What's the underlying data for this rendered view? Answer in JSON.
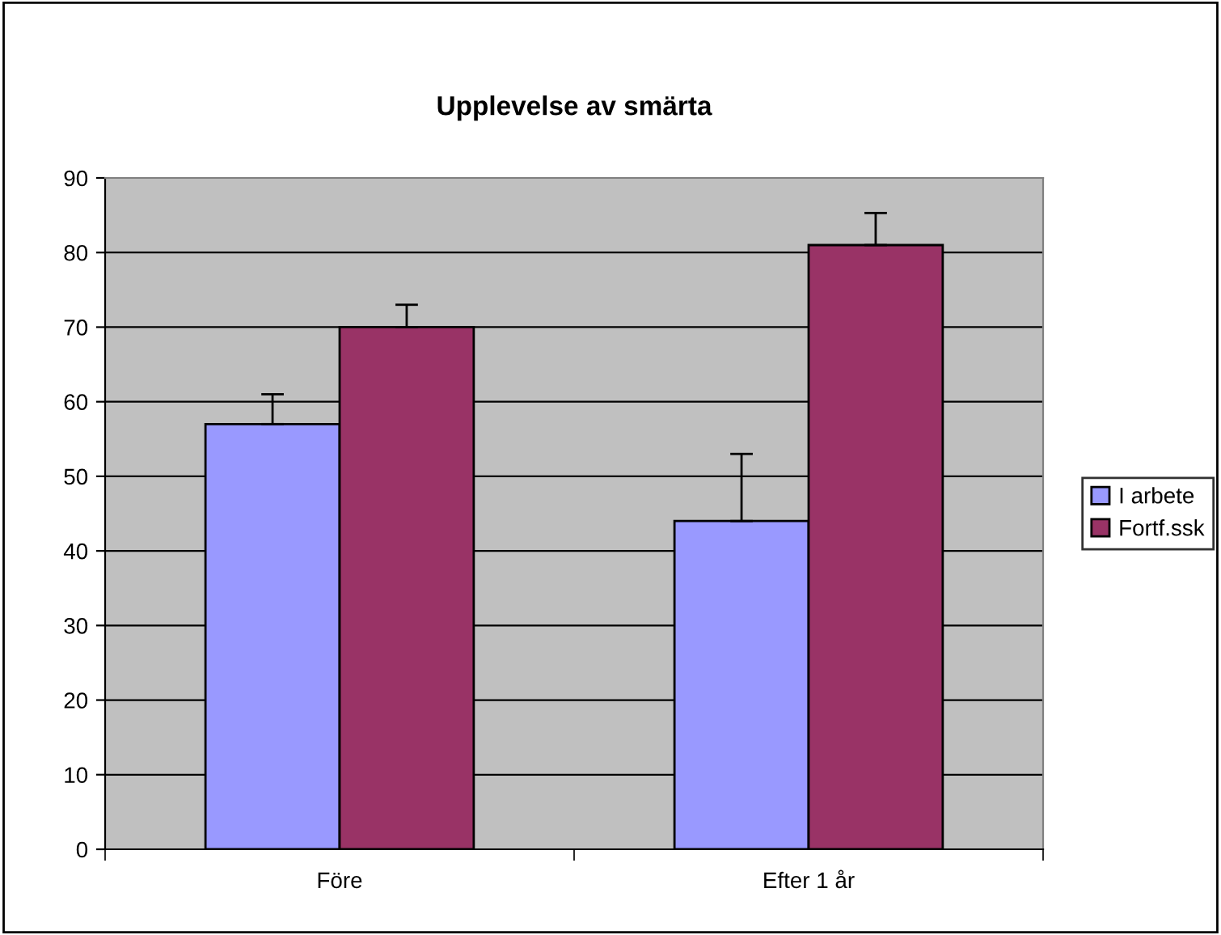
{
  "chart_data": {
    "type": "bar",
    "title": "Upplevelse av smärta",
    "categories": [
      "Före",
      "Efter 1 år"
    ],
    "series": [
      {
        "name": "I arbete",
        "color": "#9999ff",
        "values": [
          57,
          44
        ],
        "errors": [
          [
            57,
            61
          ],
          [
            44,
            53
          ]
        ]
      },
      {
        "name": "Fortf.ssk",
        "color": "#993366",
        "values": [
          70,
          81
        ],
        "errors": [
          [
            70,
            73
          ],
          [
            81,
            85.3
          ]
        ]
      }
    ],
    "ylim": [
      0,
      90
    ],
    "yticks": [
      0,
      10,
      20,
      30,
      40,
      50,
      60,
      70,
      80,
      90
    ],
    "grid": "y",
    "legend": "right"
  }
}
